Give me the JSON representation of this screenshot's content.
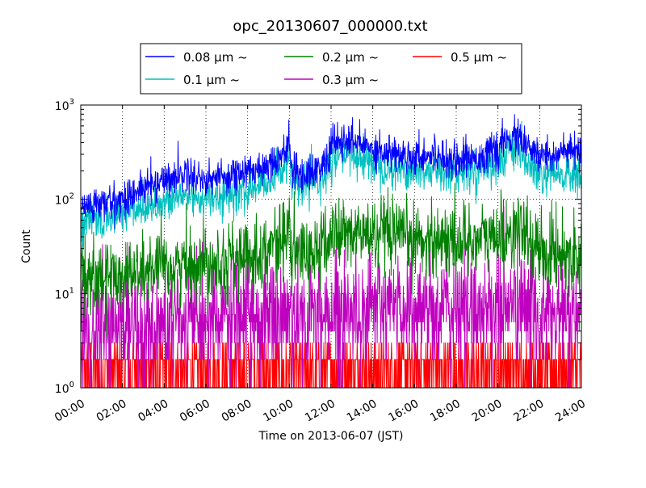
{
  "chart_data": {
    "type": "line",
    "title": "opc_20130607_000000.txt",
    "xlabel": "Time on 2013-06-07 (JST)",
    "ylabel": "Count",
    "x_unit": "hour of day (JST)",
    "xlim": [
      0,
      24
    ],
    "ylim": [
      1,
      1000
    ],
    "yscale": "log",
    "grid": true,
    "grid_style": "dotted",
    "legend_position": "top-center",
    "x_tick_labels": [
      "00:00",
      "02:00",
      "04:00",
      "06:00",
      "08:00",
      "10:00",
      "12:00",
      "14:00",
      "16:00",
      "18:00",
      "20:00",
      "22:00",
      "24:00"
    ],
    "x_ticks": [
      0,
      2,
      4,
      6,
      8,
      10,
      12,
      14,
      16,
      18,
      20,
      22,
      24
    ],
    "y_ticks": [
      1,
      10,
      100,
      1000
    ],
    "y_tick_bases": [
      "10",
      "10",
      "10",
      "10"
    ],
    "y_tick_exponents": [
      "0",
      "1",
      "2",
      "3"
    ],
    "series": [
      {
        "name": "0.08 μm ~",
        "color": "#0000ff",
        "noise": 0.22,
        "x": [
          0,
          1,
          2,
          3,
          4,
          5,
          6,
          7,
          8,
          9,
          9.5,
          10,
          10.1,
          10.4,
          11,
          11.5,
          11.9,
          12.0,
          12.5,
          13,
          13.5,
          14,
          15,
          16,
          17,
          18,
          19,
          20,
          20.5,
          21,
          21.5,
          22,
          23,
          24
        ],
        "values": [
          80,
          88,
          100,
          130,
          160,
          190,
          160,
          180,
          190,
          240,
          280,
          380,
          200,
          185,
          190,
          220,
          280,
          390,
          400,
          410,
          380,
          350,
          300,
          290,
          300,
          260,
          280,
          330,
          430,
          470,
          320,
          290,
          310,
          320
        ]
      },
      {
        "name": "0.1 μm ~",
        "color": "#00bfbf",
        "noise": 0.25,
        "x": [
          0,
          1,
          2,
          3,
          4,
          5,
          6,
          7,
          8,
          9,
          9.5,
          10,
          10.1,
          10.4,
          11,
          11.5,
          11.9,
          12.0,
          12.5,
          13,
          13.5,
          14,
          15,
          16,
          17,
          18,
          19,
          20,
          20.5,
          21,
          21.5,
          22,
          23,
          24
        ],
        "values": [
          55,
          62,
          70,
          85,
          90,
          110,
          100,
          110,
          120,
          160,
          200,
          270,
          150,
          135,
          145,
          170,
          210,
          260,
          280,
          300,
          270,
          250,
          210,
          200,
          205,
          195,
          210,
          240,
          310,
          320,
          220,
          170,
          180,
          175
        ]
      },
      {
        "name": "0.2 μm ~",
        "color": "#008000",
        "noise": 0.45,
        "x": [
          0,
          1,
          2,
          3,
          4,
          5,
          6,
          7,
          8,
          9,
          9.5,
          10,
          10.1,
          10.4,
          11,
          11.5,
          11.9,
          12.0,
          12.5,
          13,
          13.5,
          14,
          15,
          16,
          17,
          18,
          19,
          20,
          20.5,
          21,
          21.5,
          22,
          23,
          24
        ],
        "values": [
          14,
          15,
          16,
          17,
          18,
          20,
          22,
          23,
          24,
          30,
          36,
          45,
          27,
          25,
          27,
          30,
          36,
          42,
          43,
          44,
          43,
          42,
          38,
          37,
          38,
          36,
          38,
          40,
          44,
          47,
          35,
          28,
          27,
          26
        ]
      },
      {
        "name": "0.3 μm ~",
        "color": "#bf00bf",
        "noise": 0.7,
        "x": [
          0,
          2,
          4,
          6,
          8,
          10,
          11,
          12,
          14,
          16,
          18,
          20,
          21,
          22,
          24
        ],
        "values": [
          4,
          4,
          4.5,
          5,
          5.5,
          6,
          5.5,
          6.5,
          7,
          7,
          6.5,
          7,
          7.5,
          5.5,
          5.5
        ]
      },
      {
        "name": "0.5 μm ~",
        "color": "#ff0000",
        "noise": 0,
        "x": [
          0,
          24
        ],
        "values": [
          1.5,
          1.5
        ],
        "discrete_levels": [
          1,
          2,
          3
        ]
      }
    ]
  }
}
